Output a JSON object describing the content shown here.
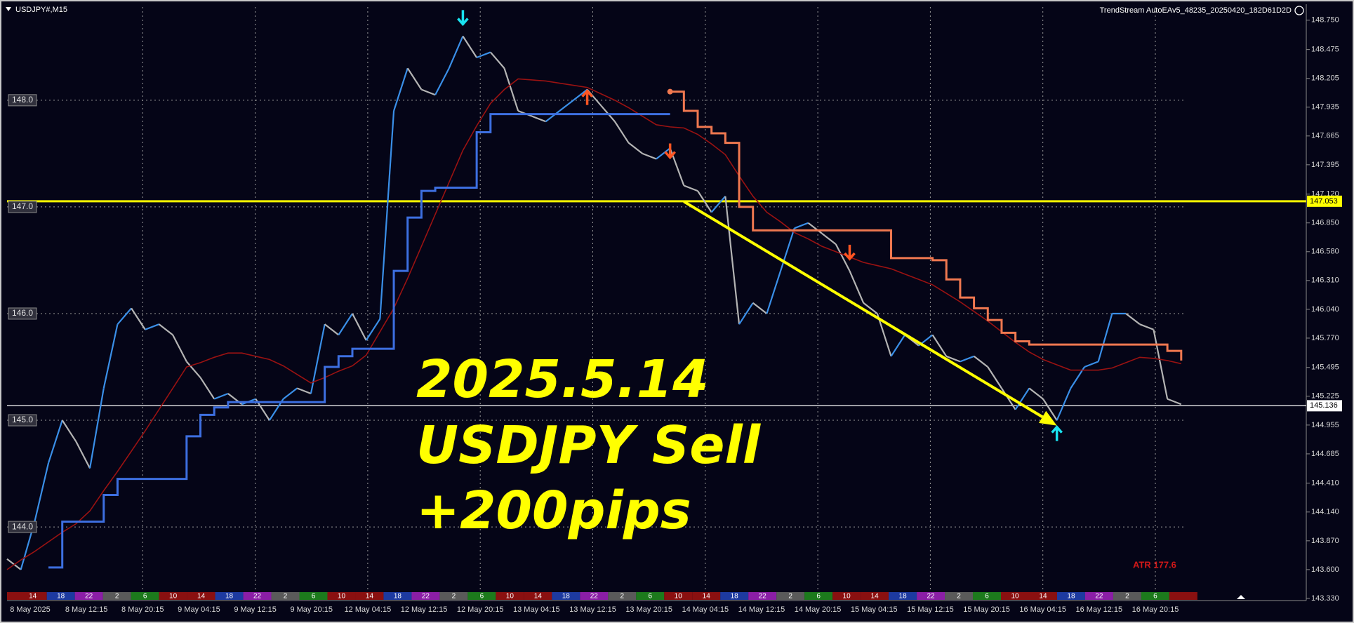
{
  "chart_data": {
    "type": "line",
    "title": "USDJPY#,M15",
    "subtitle": "TrendStream AutoEAv5_48235_20250420_182D61D2D",
    "annotations": [
      "2025.5.14",
      "USDJPY Sell",
      "+200pips"
    ],
    "indicator_label": "ATR 177.6",
    "x_labels": [
      "8 May 2025",
      "8 May 12:15",
      "8 May 20:15",
      "9 May 04:15",
      "9 May 12:15",
      "9 May 20:15",
      "12 May 04:15",
      "12 May 12:15",
      "12 May 20:15",
      "13 May 04:15",
      "13 May 12:15",
      "13 May 20:15",
      "14 May 04:15",
      "14 May 12:15",
      "14 May 20:15",
      "15 May 04:15",
      "15 May 12:15",
      "15 May 20:15",
      "16 May 04:15",
      "16 May 12:15",
      "16 May 20:15"
    ],
    "ylim": [
      143.31,
      148.9
    ],
    "yticks": [
      {
        "value": 148.75,
        "label": "148.750"
      },
      148.475,
      148.205,
      147.935,
      147.665,
      147.395,
      {
        "value": 147.12,
        "label": "147.120"
      },
      {
        "value": 146.85,
        "label": "146.850"
      },
      {
        "value": 146.58,
        "label": "146.580"
      },
      {
        "value": 146.31,
        "label": "146.310"
      },
      {
        "value": 146.04,
        "label": "146.040"
      },
      {
        "value": 145.77,
        "label": "145.770"
      },
      145.495,
      145.225,
      144.955,
      144.685,
      {
        "value": 144.41,
        "label": "144.410"
      },
      {
        "value": 144.14,
        "label": "144.140"
      },
      {
        "value": 143.87,
        "label": "143.870"
      },
      {
        "value": 143.6,
        "label": "143.600"
      },
      {
        "value": 143.33,
        "label": "143.330"
      }
    ],
    "levels": [
      {
        "value": 148,
        "label": "148.0"
      },
      {
        "value": 147,
        "label": "147.0"
      },
      {
        "value": 146,
        "label": "146.0"
      },
      {
        "value": 145,
        "label": "145.0"
      },
      {
        "value": 144,
        "label": "144.0"
      }
    ],
    "hlines": [
      {
        "value": 147.053,
        "color": "#ffff00"
      },
      {
        "value": 145.136,
        "color": "#ffffff"
      }
    ],
    "grid": true,
    "series": [
      {
        "color": "#3a8fe8",
        "down_color": "#b4b4b4",
        "values": [
          143.7,
          143.6,
          144.05,
          144.6,
          145.0,
          144.8,
          144.55,
          145.3,
          145.9,
          146.05,
          145.85,
          145.9,
          145.8,
          145.55,
          145.4,
          145.2,
          145.25,
          145.15,
          145.2,
          145.0,
          145.2,
          145.3,
          145.25,
          145.9,
          145.8,
          146.0,
          145.75,
          145.95,
          147.9,
          148.3,
          148.1,
          148.05,
          148.3,
          148.6,
          148.4,
          148.45,
          148.3,
          147.9,
          147.85,
          147.8,
          147.9,
          148.0,
          148.1,
          147.95,
          147.8,
          147.6,
          147.5,
          147.45,
          147.55,
          147.2,
          147.15,
          146.95,
          147.1,
          145.9,
          146.1,
          146.0,
          146.4,
          146.8,
          146.85,
          146.75,
          146.65,
          146.4,
          146.1,
          146.0,
          145.6,
          145.8,
          145.7,
          145.8,
          145.6,
          145.55,
          145.6,
          145.5,
          145.3,
          145.1,
          145.3,
          145.2,
          145.0,
          145.3,
          145.5,
          145.55,
          146.0,
          146.0,
          145.9,
          145.85,
          145.2,
          145.15
        ]
      },
      {
        "color": "#9a1212",
        "values": [
          143.6,
          143.69,
          143.77,
          143.86,
          143.95,
          144.03,
          144.15,
          144.34,
          144.52,
          144.71,
          144.9,
          145.1,
          145.3,
          145.5,
          145.54,
          145.59,
          145.63,
          145.63,
          145.6,
          145.57,
          145.51,
          145.43,
          145.35,
          145.4,
          145.46,
          145.51,
          145.61,
          145.83,
          146.05,
          146.33,
          146.63,
          146.93,
          147.23,
          147.53,
          147.76,
          147.97,
          148.1,
          148.2,
          148.19,
          148.18,
          148.16,
          148.14,
          148.12,
          148.06,
          148.0,
          147.93,
          147.85,
          147.77,
          147.75,
          147.74,
          147.68,
          147.59,
          147.49,
          147.29,
          147.1,
          146.95,
          146.86,
          146.76,
          146.7,
          146.63,
          146.58,
          146.53,
          146.48,
          146.45,
          146.42,
          146.37,
          146.32,
          146.27,
          146.19,
          146.11,
          146.02,
          145.93,
          145.83,
          145.73,
          145.64,
          145.57,
          145.52,
          145.47,
          145.47,
          145.47,
          145.49,
          145.54,
          145.59,
          145.58,
          145.56,
          145.53
        ]
      },
      {
        "color": "#3d6fe0",
        "style": "step",
        "values": [
          null,
          null,
          null,
          143.62,
          144.05,
          144.05,
          144.05,
          144.3,
          144.45,
          144.45,
          144.45,
          144.45,
          144.45,
          144.85,
          145.05,
          145.12,
          145.17,
          145.17,
          145.17,
          145.17,
          145.17,
          145.17,
          145.17,
          145.5,
          145.6,
          145.67,
          145.67,
          145.67,
          146.4,
          146.9,
          147.15,
          147.18,
          147.18,
          147.18,
          147.7,
          147.87,
          147.87,
          147.87,
          147.87,
          147.87,
          147.87,
          147.87,
          147.87,
          147.87,
          147.87,
          147.87,
          147.87,
          147.87,
          147.87,
          null,
          null,
          null,
          null,
          null,
          null,
          null,
          null,
          null,
          null,
          null,
          null,
          null,
          null,
          null,
          null,
          null,
          null,
          null,
          null,
          null,
          null,
          null,
          null,
          null,
          null,
          null,
          null,
          null,
          null,
          null,
          null,
          null,
          null,
          null,
          null,
          null
        ]
      },
      {
        "color": "#f07850",
        "style": "step",
        "values": [
          null,
          null,
          null,
          null,
          null,
          null,
          null,
          null,
          null,
          null,
          null,
          null,
          null,
          null,
          null,
          null,
          null,
          null,
          null,
          null,
          null,
          null,
          null,
          null,
          null,
          null,
          null,
          null,
          null,
          null,
          null,
          null,
          null,
          null,
          null,
          null,
          null,
          null,
          null,
          null,
          null,
          null,
          null,
          null,
          null,
          null,
          null,
          null,
          148.08,
          147.9,
          147.75,
          147.69,
          147.6,
          147.0,
          146.78,
          146.78,
          146.78,
          146.78,
          146.78,
          146.78,
          146.78,
          146.78,
          146.78,
          146.78,
          146.52,
          146.52,
          146.52,
          146.5,
          146.32,
          146.15,
          146.05,
          145.94,
          145.82,
          145.74,
          145.71,
          145.71,
          145.71,
          145.71,
          145.71,
          145.71,
          145.71,
          145.71,
          145.71,
          145.71,
          145.65,
          145.56
        ]
      }
    ],
    "signals": [
      {
        "x": 33,
        "y": 148.7,
        "direction": "down",
        "color": "#19e3f0"
      },
      {
        "x": 42,
        "y": 148.1,
        "direction": "up",
        "color": "#ff5522"
      },
      {
        "x": 48,
        "y": 147.45,
        "direction": "down",
        "color": "#ff5522"
      },
      {
        "x": 61,
        "y": 146.5,
        "direction": "down",
        "color": "#ff5522"
      },
      {
        "x": 76,
        "y": 144.95,
        "direction": "up",
        "color": "#19e3f0"
      }
    ],
    "trend_arrow": {
      "x": [
        49,
        76
      ],
      "y": [
        147.05,
        144.95
      ],
      "color": "#ffff00"
    },
    "sessions": {
      "labels": [
        14,
        18,
        22,
        2,
        6,
        10,
        14,
        18,
        22,
        2,
        6,
        10,
        14,
        18,
        22,
        2,
        6,
        10,
        14,
        18,
        22,
        2,
        6,
        10,
        14,
        18,
        22,
        2,
        6,
        10,
        14,
        18,
        22,
        2,
        6,
        10,
        14,
        18,
        22,
        2,
        6,
        null
      ],
      "palette": [
        "#8a1010",
        "#1d3aa0",
        "#8b1ea6",
        "#5a5a5a",
        "#1c7a1c",
        "#8a1010"
      ]
    }
  }
}
